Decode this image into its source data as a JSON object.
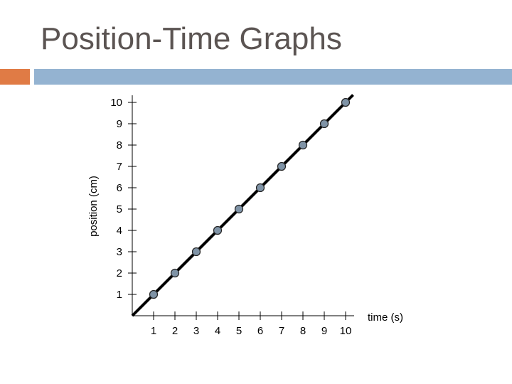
{
  "slide": {
    "title": "Position-Time Graphs",
    "accent_colors": {
      "orange": "#e07b45",
      "blue": "#94b3d1"
    }
  },
  "chart_data": {
    "type": "scatter",
    "title": "",
    "xlabel": "time (s)",
    "ylabel": "position (cm)",
    "xlim": [
      0,
      10
    ],
    "ylim": [
      0,
      10
    ],
    "x_ticks": [
      "1",
      "2",
      "3",
      "4",
      "5",
      "6",
      "7",
      "8",
      "9",
      "10"
    ],
    "y_ticks": [
      "1",
      "2",
      "3",
      "4",
      "5",
      "6",
      "7",
      "8",
      "9",
      "10"
    ],
    "grid": false,
    "trend_line": "through origin",
    "series": [
      {
        "x": [
          1,
          2,
          3,
          4,
          5,
          6,
          7,
          8,
          9,
          10
        ],
        "y": [
          1,
          2,
          3,
          4,
          5,
          6,
          7,
          8,
          9,
          10
        ],
        "marker_color": "#7f93a6",
        "line_color": "#000000"
      }
    ]
  }
}
